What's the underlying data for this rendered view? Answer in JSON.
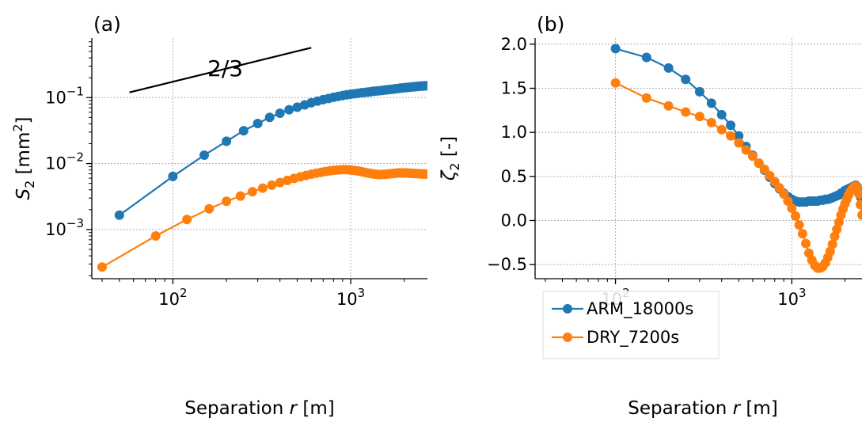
{
  "chart_data": [
    {
      "panel_label": "(a)",
      "type": "line",
      "xscale": "log",
      "yscale": "log",
      "xlim": [
        35,
        2700
      ],
      "ylim": [
        0.00018,
        0.8
      ],
      "xlabel": "Separation r [m]",
      "ylabel": "S2 [mm2]",
      "grid": true,
      "x_ticks": [
        {
          "value": 100,
          "base": "10",
          "exp": "2"
        },
        {
          "value": 1000,
          "base": "10",
          "exp": "3"
        }
      ],
      "y_ticks": [
        {
          "value": 0.001,
          "base": "10",
          "exp": "−3"
        },
        {
          "value": 0.01,
          "base": "10",
          "exp": "−2"
        },
        {
          "value": 0.1,
          "base": "10",
          "exp": "−1"
        }
      ],
      "reference_line": {
        "label": "2/3",
        "x": [
          57,
          600
        ],
        "y": [
          0.12,
          0.57
        ],
        "color": "#000000"
      },
      "series": [
        {
          "name": "ARM_18000s",
          "color": "#1f77b4",
          "x": [
            50,
            100,
            150,
            200,
            250,
            300,
            350,
            400,
            450,
            500,
            550,
            600,
            650,
            700,
            750,
            800,
            850,
            900,
            950,
            1000,
            1050,
            1100,
            1150,
            1200,
            1250,
            1300,
            1350,
            1400,
            1450,
            1500,
            1550,
            1600,
            1650,
            1700,
            1750,
            1800,
            1850,
            1900,
            1950,
            2000,
            2050,
            2100,
            2150,
            2200,
            2250,
            2300,
            2350,
            2400,
            2450,
            2500,
            2550,
            2600,
            2650,
            2700
          ],
          "y": [
            0.00165,
            0.0064,
            0.0134,
            0.0218,
            0.0315,
            0.0405,
            0.05,
            0.058,
            0.0655,
            0.0715,
            0.0775,
            0.0835,
            0.0885,
            0.093,
            0.097,
            0.101,
            0.1045,
            0.1075,
            0.11,
            0.1125,
            0.1145,
            0.1165,
            0.1185,
            0.12,
            0.1215,
            0.123,
            0.1245,
            0.126,
            0.127,
            0.1285,
            0.13,
            0.1315,
            0.1325,
            0.134,
            0.135,
            0.1365,
            0.1375,
            0.139,
            0.14,
            0.141,
            0.142,
            0.143,
            0.144,
            0.145,
            0.1455,
            0.1465,
            0.1475,
            0.148,
            0.149,
            0.1495,
            0.15,
            0.1505,
            0.151,
            0.1515
          ]
        },
        {
          "name": "DRY_7200s",
          "color": "#ff7f0e",
          "x": [
            40,
            80,
            120,
            160,
            200,
            240,
            280,
            320,
            360,
            400,
            440,
            480,
            520,
            560,
            600,
            640,
            680,
            720,
            760,
            800,
            840,
            880,
            920,
            960,
            1000,
            1040,
            1080,
            1120,
            1160,
            1200,
            1240,
            1280,
            1320,
            1360,
            1400,
            1440,
            1480,
            1520,
            1560,
            1600,
            1640,
            1680,
            1720,
            1760,
            1800,
            1840,
            1880,
            1920,
            1960,
            2000,
            2040,
            2080,
            2120,
            2160,
            2200,
            2240,
            2280,
            2320,
            2360,
            2400,
            2440,
            2480,
            2520,
            2560,
            2600,
            2640,
            2680
          ],
          "y": [
            0.00027,
            0.0008,
            0.00142,
            0.00206,
            0.00268,
            0.00322,
            0.00375,
            0.00425,
            0.0047,
            0.00515,
            0.00555,
            0.00595,
            0.00628,
            0.0066,
            0.0069,
            0.00715,
            0.00738,
            0.00758,
            0.00775,
            0.0079,
            0.008,
            0.00805,
            0.00808,
            0.00806,
            0.008,
            0.0079,
            0.00778,
            0.00765,
            0.0075,
            0.00735,
            0.00722,
            0.0071,
            0.007,
            0.00692,
            0.00686,
            0.00683,
            0.00682,
            0.00684,
            0.00687,
            0.00692,
            0.00697,
            0.00702,
            0.00707,
            0.00712,
            0.00716,
            0.00719,
            0.00721,
            0.00722,
            0.00722,
            0.00721,
            0.0072,
            0.00718,
            0.00716,
            0.00714,
            0.00712,
            0.0071,
            0.00708,
            0.00706,
            0.00704,
            0.00702,
            0.007,
            0.00698,
            0.00697,
            0.00696,
            0.00695,
            0.00694,
            0.00693
          ]
        }
      ]
    },
    {
      "panel_label": "(b)",
      "type": "line",
      "xscale": "log",
      "yscale": "linear",
      "xlim": [
        35,
        2500
      ],
      "ylim": [
        -0.66,
        2.07
      ],
      "xlabel": "Separation r [m]",
      "ylabel": "ζ2 [-]",
      "grid": true,
      "x_ticks": [
        {
          "value": 100,
          "base": "10",
          "exp": "2"
        },
        {
          "value": 1000,
          "base": "10",
          "exp": "3"
        }
      ],
      "y_ticks": [
        {
          "value": -0.5,
          "label": "−0.5"
        },
        {
          "value": 0.0,
          "label": "0.0"
        },
        {
          "value": 0.5,
          "label": "0.5"
        },
        {
          "value": 1.0,
          "label": "1.0"
        },
        {
          "value": 1.5,
          "label": "1.5"
        },
        {
          "value": 2.0,
          "label": "2.0"
        }
      ],
      "legend": {
        "position": "lower-left"
      },
      "series": [
        {
          "name": "ARM_18000s",
          "color": "#1f77b4",
          "x": [
            100,
            150,
            200,
            250,
            300,
            350,
            400,
            450,
            500,
            550,
            600,
            650,
            700,
            750,
            800,
            850,
            900,
            950,
            1000,
            1050,
            1100,
            1150,
            1200,
            1250,
            1300,
            1350,
            1400,
            1450,
            1500,
            1550,
            1600,
            1650,
            1700,
            1750,
            1800,
            1850,
            1900,
            1950,
            2000,
            2050,
            2100,
            2150,
            2200,
            2250,
            2300,
            2350,
            2400,
            2450,
            2500
          ],
          "y": [
            1.95,
            1.85,
            1.73,
            1.6,
            1.46,
            1.33,
            1.2,
            1.08,
            0.96,
            0.84,
            0.74,
            0.65,
            0.57,
            0.49,
            0.42,
            0.36,
            0.31,
            0.27,
            0.24,
            0.22,
            0.21,
            0.21,
            0.21,
            0.22,
            0.22,
            0.22,
            0.22,
            0.23,
            0.23,
            0.24,
            0.24,
            0.25,
            0.26,
            0.27,
            0.28,
            0.29,
            0.31,
            0.32,
            0.34,
            0.35,
            0.36,
            0.37,
            0.38,
            0.39,
            0.4,
            0.38,
            0.33,
            0.27,
            0.22
          ]
        },
        {
          "name": "DRY_7200s",
          "color": "#ff7f0e",
          "x": [
            100,
            150,
            200,
            250,
            300,
            350,
            400,
            450,
            500,
            550,
            600,
            650,
            700,
            750,
            800,
            850,
            900,
            950,
            1000,
            1050,
            1100,
            1150,
            1200,
            1250,
            1300,
            1350,
            1400,
            1450,
            1500,
            1550,
            1600,
            1650,
            1700,
            1750,
            1800,
            1850,
            1900,
            1950,
            2000,
            2050,
            2100,
            2150,
            2200,
            2250,
            2300,
            2350,
            2400,
            2450,
            2500
          ],
          "y": [
            1.56,
            1.39,
            1.3,
            1.23,
            1.18,
            1.11,
            1.03,
            0.96,
            0.88,
            0.8,
            0.73,
            0.65,
            0.58,
            0.51,
            0.44,
            0.37,
            0.3,
            0.22,
            0.14,
            0.05,
            -0.05,
            -0.15,
            -0.26,
            -0.37,
            -0.45,
            -0.51,
            -0.54,
            -0.54,
            -0.52,
            -0.48,
            -0.42,
            -0.35,
            -0.27,
            -0.18,
            -0.1,
            -0.02,
            0.06,
            0.13,
            0.19,
            0.24,
            0.29,
            0.33,
            0.36,
            0.38,
            0.39,
            0.37,
            0.3,
            0.18,
            0.06
          ]
        }
      ]
    }
  ]
}
